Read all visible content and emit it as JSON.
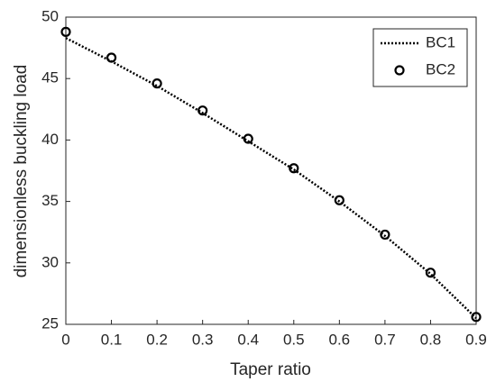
{
  "chart_data": {
    "type": "line",
    "x_label": "Taper ratio",
    "y_label": "dimensionless buckling load",
    "x": [
      0,
      0.1,
      0.2,
      0.3,
      0.4,
      0.5,
      0.6,
      0.7,
      0.8,
      0.9
    ],
    "series": [
      {
        "name": "BC1",
        "color": "#000000",
        "style": "dotted",
        "values": [
          48.3,
          46.4,
          44.4,
          42.2,
          39.9,
          37.6,
          35.0,
          32.2,
          29.1,
          25.5
        ]
      },
      {
        "name": "BC2",
        "color": "#000000",
        "style": "markers",
        "values": [
          48.8,
          46.7,
          44.6,
          42.4,
          40.1,
          37.7,
          35.1,
          32.3,
          29.2,
          25.6
        ]
      }
    ],
    "xlim": [
      0,
      0.9
    ],
    "xticks": [
      0,
      0.1,
      0.2,
      0.3,
      0.4,
      0.5,
      0.6,
      0.7,
      0.8,
      0.9
    ],
    "ylim": [
      25,
      50
    ],
    "yticks": [
      25,
      30,
      35,
      40,
      45,
      50
    ],
    "legend": "upper right",
    "grid": false
  }
}
